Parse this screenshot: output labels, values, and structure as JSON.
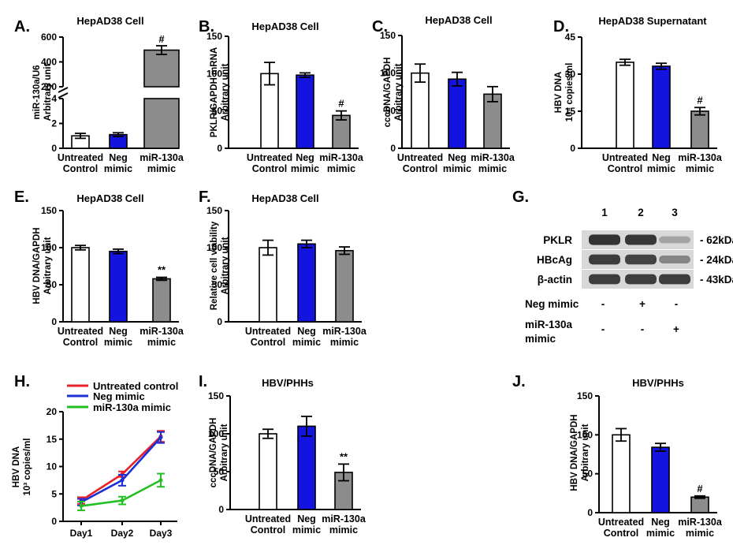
{
  "colors": {
    "untreated": "#ffffff",
    "neg": "#1414e0",
    "mir": "#8c8c8c",
    "line_untreated": "#e8202a",
    "line_neg": "#1c2fd6",
    "line_mir": "#22c022"
  },
  "category_labels": [
    [
      "Untreated",
      "Control"
    ],
    [
      "Neg",
      "mimic"
    ],
    [
      "miR-130a",
      "mimic"
    ]
  ],
  "chart_data": [
    {
      "id": "A",
      "panel": "A.",
      "type": "bar",
      "title": "HepAD38 Cell",
      "ylabel": [
        "miR-130a/U6",
        "Arbitrary unit"
      ],
      "broken_axis": {
        "lower": [
          0,
          4
        ],
        "upper": [
          200,
          600
        ]
      },
      "yticks_lower": [
        "0",
        "2",
        "4"
      ],
      "yticks_upper": [
        "200",
        "400",
        "600"
      ],
      "values": [
        1,
        1.1,
        495
      ],
      "errors": [
        0.2,
        0.15,
        35
      ],
      "annotations": [
        "",
        "",
        "#"
      ]
    },
    {
      "id": "B",
      "panel": "B.",
      "type": "bar",
      "title": "HepAD38 Cell",
      "ylabel": [
        "PKLR/GAPDH mRNA",
        "Arbitrary unit"
      ],
      "ylim": [
        0,
        150
      ],
      "yticks": [
        "0",
        "50",
        "100",
        "150"
      ],
      "values": [
        100,
        98,
        44
      ],
      "errors": [
        15,
        3,
        6
      ],
      "annotations": [
        "",
        "",
        "#"
      ]
    },
    {
      "id": "C",
      "panel": "C.",
      "type": "bar",
      "title": "HepAD38 Cell",
      "ylabel": [
        "cccDNA/GAPDH",
        "Arbitrary unit"
      ],
      "ylim": [
        0,
        150
      ],
      "yticks": [
        "0",
        "50",
        "100",
        "150"
      ],
      "values": [
        100,
        92,
        72
      ],
      "errors": [
        12,
        9,
        10
      ],
      "annotations": [
        "",
        "",
        ""
      ]
    },
    {
      "id": "D",
      "panel": "D.",
      "type": "bar",
      "title": "HepAD38 Supernatant",
      "ylabel": [
        "HBV DNA",
        "10⁴ copies/ml"
      ],
      "ylim": [
        0,
        45
      ],
      "yticks": [
        "0",
        "15",
        "30",
        "45"
      ],
      "values": [
        34.8,
        33.2,
        15
      ],
      "errors": [
        1.2,
        1.2,
        1.5
      ],
      "annotations": [
        "",
        "",
        "#"
      ]
    },
    {
      "id": "E",
      "panel": "E.",
      "type": "bar",
      "title": "HepAD38 Cell",
      "ylabel": [
        "HBV DNA/GAPDH",
        "Arbitrary unit"
      ],
      "ylim": [
        0,
        150
      ],
      "yticks": [
        "0",
        "50",
        "100",
        "150"
      ],
      "values": [
        100,
        95,
        58
      ],
      "errors": [
        3,
        3,
        2
      ],
      "annotations": [
        "",
        "",
        "**"
      ]
    },
    {
      "id": "F",
      "panel": "F.",
      "type": "bar",
      "title": "HepAD38 Cell",
      "ylabel": [
        "Relative cell viability",
        "Arbitrary unit"
      ],
      "ylim": [
        0,
        150
      ],
      "yticks": [
        "0",
        "50",
        "100",
        "150"
      ],
      "values": [
        100,
        105,
        96
      ],
      "errors": [
        10,
        5,
        5
      ],
      "annotations": [
        "",
        "",
        ""
      ]
    },
    {
      "id": "H",
      "panel": "H.",
      "type": "line",
      "ylabel": [
        "HBV DNA",
        "10³ copies/ml"
      ],
      "ylim": [
        0,
        20
      ],
      "yticks": [
        "0",
        "5",
        "10",
        "15",
        "20"
      ],
      "x": [
        "Day1",
        "Day2",
        "Day3"
      ],
      "series": [
        {
          "name": "Untreated control",
          "values": [
            3.8,
            8.6,
            15.5
          ],
          "errors": [
            0.6,
            0.5,
            1.0
          ]
        },
        {
          "name": "Neg mimic",
          "values": [
            3.5,
            7.5,
            15.3
          ],
          "errors": [
            0.6,
            1.0,
            1.0
          ]
        },
        {
          "name": "miR-130a mimic",
          "values": [
            2.8,
            3.8,
            7.5
          ],
          "errors": [
            0.8,
            0.7,
            1.2
          ]
        }
      ]
    },
    {
      "id": "I",
      "panel": "I.",
      "type": "bar",
      "title": "HBV/PHHs",
      "ylabel": [
        "cccDNA/GAPDH",
        "Arbitrary unit"
      ],
      "ylim": [
        0,
        150
      ],
      "yticks": [
        "0",
        "50",
        "100",
        "150"
      ],
      "values": [
        100,
        110,
        49
      ],
      "errors": [
        6,
        13,
        11
      ],
      "annotations": [
        "",
        "",
        "**"
      ]
    },
    {
      "id": "J",
      "panel": "J.",
      "type": "bar",
      "title": "HBV/PHHs",
      "ylabel": [
        "HBV DNA/GAPDH",
        "Arbitrary unit"
      ],
      "ylim": [
        0,
        150
      ],
      "yticks": [
        "0",
        "50",
        "100",
        "150"
      ],
      "values": [
        100,
        84,
        20
      ],
      "errors": [
        8,
        5,
        1.5
      ],
      "annotations": [
        "",
        "",
        "#"
      ]
    }
  ],
  "western_blot": {
    "panel": "G.",
    "lanes": [
      "1",
      "2",
      "3"
    ],
    "bands": [
      {
        "protein": "PKLR",
        "size": "- 62kDa"
      },
      {
        "protein": "HBcAg",
        "size": "- 24kDa"
      },
      {
        "protein": "β-actin",
        "size": "- 43kDa"
      }
    ],
    "band_intensity": [
      [
        0.9,
        0.88,
        0.35
      ],
      [
        0.85,
        0.82,
        0.5
      ],
      [
        0.85,
        0.85,
        0.85
      ]
    ],
    "conditions": [
      {
        "label": "Neg mimic",
        "marks": [
          "-",
          "+",
          "-"
        ]
      },
      {
        "label": [
          "miR-130a",
          "mimic"
        ],
        "marks": [
          "-",
          "-",
          "+"
        ]
      }
    ]
  }
}
